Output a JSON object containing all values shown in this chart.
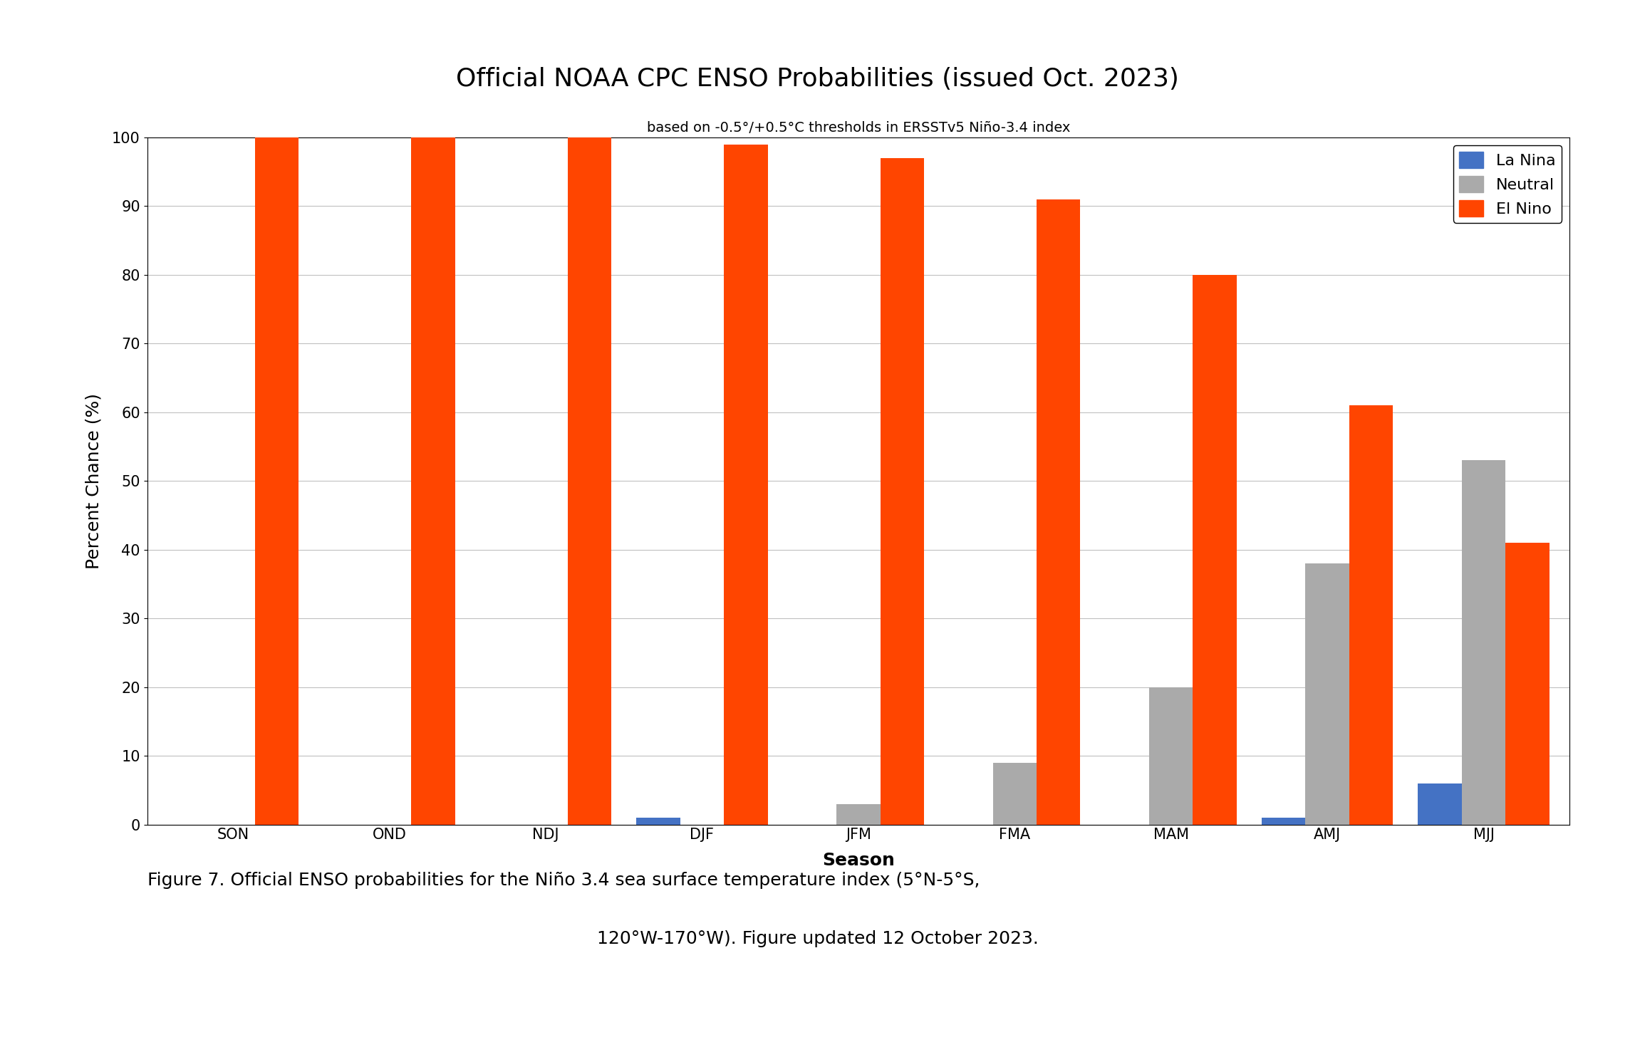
{
  "title": "Official NOAA CPC ENSO Probabilities (issued Oct. 2023)",
  "subtitle": "based on -0.5°/+0.5°C thresholds in ERSSTv5 Niño-3.4 index",
  "xlabel": "Season",
  "ylabel": "Percent Chance (%)",
  "seasons": [
    "SON",
    "OND",
    "NDJ",
    "DJF",
    "JFM",
    "FMA",
    "MAM",
    "AMJ",
    "MJJ"
  ],
  "la_nina": [
    0,
    0,
    0,
    1,
    0,
    0,
    0,
    1,
    6
  ],
  "neutral": [
    0,
    0,
    0,
    0,
    3,
    9,
    20,
    38,
    53
  ],
  "el_nino": [
    100,
    100,
    100,
    99,
    97,
    91,
    80,
    61,
    41
  ],
  "la_nina_color": "#4472C4",
  "neutral_color": "#AAAAAA",
  "el_nino_color": "#FF4500",
  "ylim": [
    0,
    100
  ],
  "yticks": [
    0,
    10,
    20,
    30,
    40,
    50,
    60,
    70,
    80,
    90,
    100
  ],
  "background_color": "#FFFFFF",
  "title_fontsize": 26,
  "subtitle_fontsize": 14,
  "axis_label_fontsize": 18,
  "tick_fontsize": 15,
  "legend_fontsize": 16,
  "caption_line1": "Figure 7. Official ENSO probabilities for the Niño 3.4 sea surface temperature index (5°N-5°S,",
  "caption_line2": "120°W-170°W). Figure updated 12 October 2023.",
  "caption_fontsize": 18,
  "bar_width": 0.28
}
